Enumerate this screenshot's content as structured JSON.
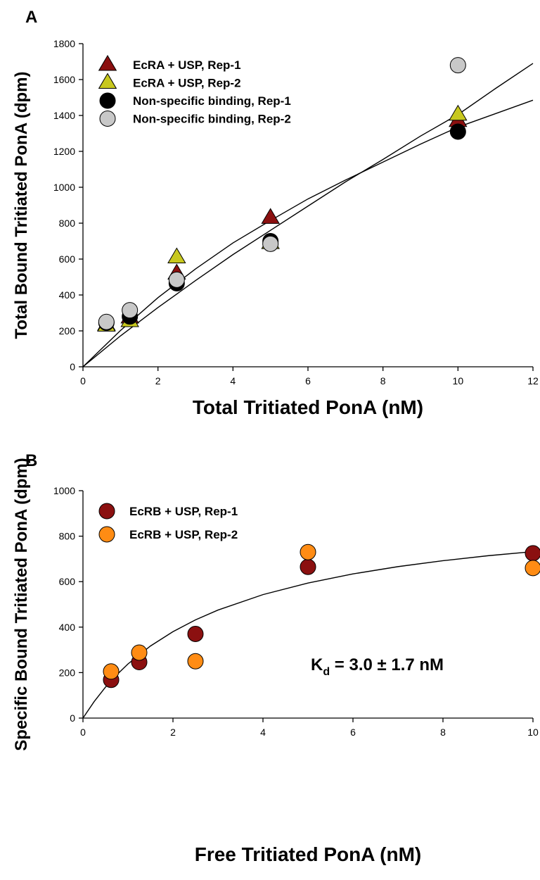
{
  "chart_data": [
    {
      "type": "scatter",
      "panel_label": "A",
      "xlabel": "Total Tritiated PonA (nM)",
      "ylabel": "Total Bound Tritiated PonA (dpm)",
      "xlim": [
        0,
        12
      ],
      "ylim": [
        0,
        1800
      ],
      "xticks": [
        0,
        2,
        4,
        6,
        8,
        10,
        12
      ],
      "yticks": [
        0,
        200,
        400,
        600,
        800,
        1000,
        1200,
        1400,
        1600,
        1800
      ],
      "legend_position": "top-left",
      "series": [
        {
          "name": "EcRA + USP, Rep-1",
          "marker": "triangle",
          "color": "#8b1010",
          "x": [
            0.625,
            1.25,
            2.5,
            5,
            10
          ],
          "y": [
            235,
            275,
            520,
            830,
            1370
          ]
        },
        {
          "name": "EcRA + USP, Rep-2",
          "marker": "triangle",
          "color": "#c8c81e",
          "x": [
            0.625,
            1.25,
            2.5,
            5,
            10
          ],
          "y": [
            230,
            255,
            610,
            690,
            1405
          ]
        },
        {
          "name": "Non-specific binding, Rep-1",
          "marker": "circle",
          "color": "#000000",
          "x": [
            0.625,
            1.25,
            2.5,
            5,
            10
          ],
          "y": [
            245,
            280,
            465,
            700,
            1310
          ]
        },
        {
          "name": "Non-specific binding, Rep-2",
          "marker": "circle",
          "color": "#c8c8c8",
          "x": [
            0.625,
            1.25,
            2.5,
            5,
            10
          ],
          "y": [
            250,
            315,
            485,
            685,
            1680
          ]
        }
      ],
      "fit_curves": [
        {
          "x": [
            0,
            1,
            2,
            3,
            4,
            5,
            6,
            7,
            8,
            9,
            10,
            11,
            12
          ],
          "y": [
            0,
            202,
            385,
            545,
            690,
            815,
            935,
            1040,
            1140,
            1240,
            1335,
            1410,
            1485
          ]
        },
        {
          "x": [
            0,
            1,
            2,
            3,
            4,
            5,
            6,
            7,
            8,
            9,
            10,
            11,
            12
          ],
          "y": [
            0,
            172,
            330,
            480,
            625,
            760,
            895,
            1030,
            1155,
            1285,
            1405,
            1550,
            1690
          ]
        }
      ]
    },
    {
      "type": "scatter",
      "panel_label": "B",
      "xlabel": "Free Tritiated PonA (nM)",
      "ylabel": "Specific Bound Tritiated PonA (dpm)",
      "xlim": [
        0,
        10
      ],
      "ylim": [
        0,
        1000
      ],
      "xticks": [
        0,
        2,
        4,
        6,
        8,
        10
      ],
      "yticks": [
        0,
        200,
        400,
        600,
        800,
        1000
      ],
      "legend_position": "top-left",
      "annotation": {
        "main": "K",
        "sub": "d",
        "rest": " = 3.0 ± 1.7 nM"
      },
      "series": [
        {
          "name": "EcRB + USP, Rep-1",
          "marker": "circle",
          "color": "#8b1010",
          "x": [
            0.625,
            1.25,
            2.5,
            5,
            10
          ],
          "y": [
            168,
            246,
            370,
            665,
            725
          ]
        },
        {
          "name": "EcRB + USP, Rep-2",
          "marker": "circle",
          "color": "#ff8c14",
          "x": [
            0.625,
            1.25,
            2.5,
            5,
            10
          ],
          "y": [
            205,
            288,
            250,
            730,
            660
          ]
        }
      ],
      "fit_curves": [
        {
          "x": [
            0,
            0.25,
            0.5,
            0.75,
            1,
            1.5,
            2,
            2.5,
            3,
            4,
            5,
            6,
            7,
            8,
            9,
            10
          ],
          "y": [
            0,
            73,
            136,
            190,
            238,
            317,
            380,
            432,
            475,
            543,
            594,
            634,
            666,
            692,
            714,
            732
          ]
        }
      ]
    }
  ]
}
